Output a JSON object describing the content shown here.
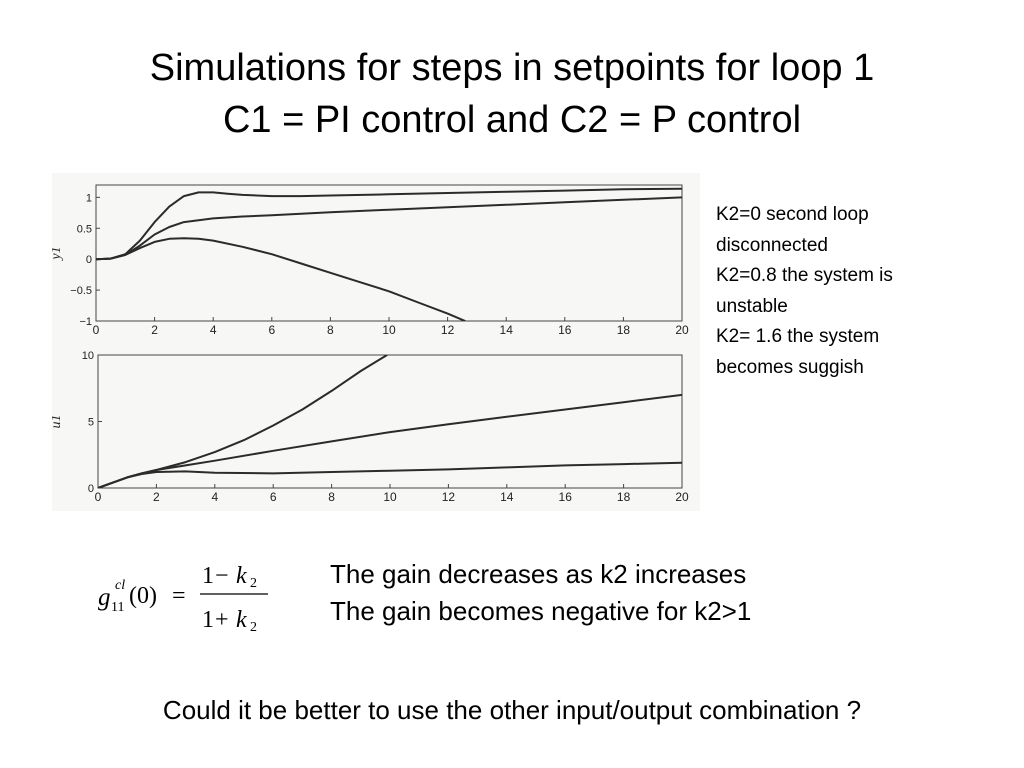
{
  "slide": {
    "title_line1": "Simulations for steps in setpoints for loop 1",
    "title_line2": "C1 = PI control and C2 = P control"
  },
  "notes": [
    "K2=0  second loop",
    "disconnected",
    "K2=0.8  the system is",
    "unstable",
    "K2= 1.6 the system",
    "becomes suggish"
  ],
  "formula": {
    "lhs_symbol": "g",
    "lhs_superscript": "cl",
    "lhs_subscript": "11",
    "lhs_argument": "(0)",
    "equals": "=",
    "numerator_one": "1",
    "numerator_op": "−",
    "denominator_one": "1",
    "denominator_op": "+",
    "k_symbol": "k",
    "k_subscript": "2"
  },
  "statements": [
    "The gain decreases as k2 increases",
    "The gain becomes negative for k2>1"
  ],
  "question": "Could it be better to use the other input/output combination ?",
  "chart_data": [
    {
      "type": "line",
      "ylabel": "y1",
      "xticks": [
        "0",
        "2",
        "4",
        "6",
        "8",
        "10",
        "12",
        "14",
        "16",
        "18",
        "20"
      ],
      "yticks": [
        "1",
        "0.5",
        "0",
        "−0.5",
        "−1"
      ],
      "xlim": [
        0,
        20
      ],
      "ylim": [
        -1,
        1.2
      ],
      "series": [
        {
          "x": [
            0,
            0.5,
            1,
            1.5,
            2,
            2.5,
            3,
            3.5,
            4,
            4.5,
            5,
            6,
            7,
            8,
            10,
            12,
            14,
            16,
            18,
            20
          ],
          "values": [
            0,
            0.01,
            0.08,
            0.3,
            0.6,
            0.85,
            1.02,
            1.08,
            1.08,
            1.06,
            1.04,
            1.02,
            1.02,
            1.03,
            1.05,
            1.07,
            1.09,
            1.11,
            1.13,
            1.14
          ]
        },
        {
          "x": [
            0,
            0.5,
            1,
            1.5,
            2,
            2.5,
            3,
            4,
            5,
            6,
            8,
            10,
            12,
            14,
            16,
            18,
            20
          ],
          "values": [
            0,
            0.01,
            0.07,
            0.22,
            0.4,
            0.52,
            0.6,
            0.66,
            0.69,
            0.71,
            0.76,
            0.8,
            0.84,
            0.88,
            0.92,
            0.96,
            1.0
          ]
        },
        {
          "x": [
            0,
            0.5,
            1,
            1.5,
            2,
            2.5,
            3,
            3.5,
            4,
            5,
            6,
            7,
            8,
            9,
            10,
            11,
            12,
            12.6
          ],
          "values": [
            0,
            0.01,
            0.07,
            0.18,
            0.28,
            0.33,
            0.34,
            0.33,
            0.3,
            0.2,
            0.08,
            -0.07,
            -0.22,
            -0.37,
            -0.52,
            -0.7,
            -0.88,
            -1.0
          ]
        }
      ]
    },
    {
      "type": "line",
      "ylabel": "u1",
      "xticks": [
        "0",
        "2",
        "4",
        "6",
        "8",
        "10",
        "12",
        "14",
        "16",
        "18",
        "20"
      ],
      "yticks": [
        "10",
        "5",
        "0"
      ],
      "xlim": [
        0,
        20
      ],
      "ylim": [
        0,
        10
      ],
      "series": [
        {
          "x": [
            0,
            0.5,
            1,
            1.5,
            2,
            3,
            4,
            5,
            6,
            7,
            8,
            9,
            9.9
          ],
          "values": [
            0,
            0.4,
            0.8,
            1.1,
            1.35,
            1.95,
            2.7,
            3.6,
            4.7,
            5.9,
            7.3,
            8.8,
            10.0
          ]
        },
        {
          "x": [
            0,
            0.5,
            1,
            1.5,
            2,
            3,
            4,
            6,
            8,
            10,
            12,
            14,
            16,
            18,
            20
          ],
          "values": [
            0,
            0.4,
            0.8,
            1.1,
            1.35,
            1.7,
            2.05,
            2.8,
            3.5,
            4.2,
            4.8,
            5.35,
            5.9,
            6.45,
            7.0
          ]
        },
        {
          "x": [
            0,
            0.5,
            1,
            1.5,
            2,
            3,
            4,
            6,
            8,
            10,
            12,
            14,
            16,
            18,
            20
          ],
          "values": [
            0,
            0.4,
            0.8,
            1.05,
            1.2,
            1.25,
            1.15,
            1.1,
            1.2,
            1.3,
            1.4,
            1.55,
            1.7,
            1.8,
            1.9
          ]
        }
      ]
    }
  ]
}
